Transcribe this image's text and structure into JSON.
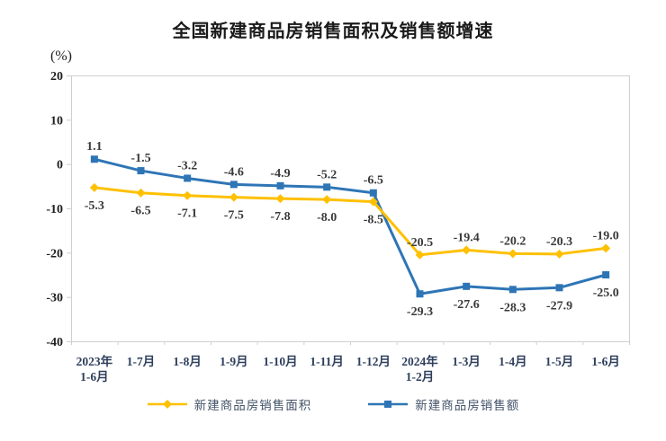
{
  "title": "全国新建商品房销售面积及销售额增速",
  "chart_data": {
    "type": "line",
    "title": "全国新建商品房销售面积及销售额增速",
    "ylabel": "(%)",
    "xlabel": "",
    "ylim": [
      -40,
      20
    ],
    "yticks": [
      20,
      10,
      0,
      -10,
      -20,
      -30,
      -40
    ],
    "grid": false,
    "legend_position": "bottom",
    "categories": [
      [
        "2023年",
        "1-6月"
      ],
      [
        "1-7月"
      ],
      [
        "1-8月"
      ],
      [
        "1-9月"
      ],
      [
        "1-10月"
      ],
      [
        "1-11月"
      ],
      [
        "1-12月"
      ],
      [
        "2024年",
        "1-2月"
      ],
      [
        "1-3月"
      ],
      [
        "1-4月"
      ],
      [
        "1-5月"
      ],
      [
        "1-6月"
      ]
    ],
    "series": [
      {
        "name": "新建商品房销售面积",
        "color": "#FFC000",
        "marker": "diamond",
        "values": [
          -5.3,
          -6.5,
          -7.1,
          -7.5,
          -7.8,
          -8.0,
          -8.5,
          -20.5,
          -19.4,
          -20.2,
          -20.3,
          -19.0
        ],
        "label_side": [
          "below",
          "below",
          "below",
          "below",
          "below",
          "below",
          "below",
          "above",
          "above",
          "above",
          "above",
          "above"
        ]
      },
      {
        "name": "新建商品房销售额",
        "color": "#2E75B6",
        "marker": "square",
        "values": [
          1.1,
          -1.5,
          -3.2,
          -4.6,
          -4.9,
          -5.2,
          -6.5,
          -29.3,
          -27.6,
          -28.3,
          -27.9,
          -25.0
        ],
        "label_side": [
          "above",
          "above",
          "above",
          "above",
          "above",
          "above",
          "above",
          "below",
          "below",
          "below",
          "below",
          "below"
        ]
      }
    ],
    "colors": {
      "plot_border": "#CFCFCF",
      "data_label": "#3a3a3a",
      "y_tick_label": "#1f1f1f",
      "x_tick_label": "#2e3f5c",
      "legend_text": "#44546A"
    }
  }
}
